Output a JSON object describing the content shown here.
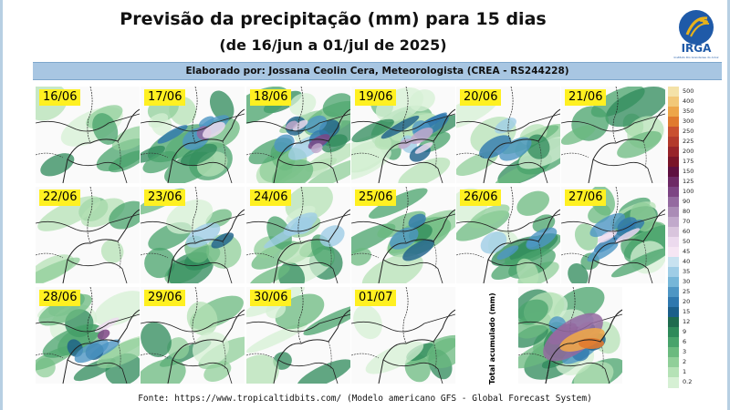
{
  "header": {
    "title": "Previsão da precipitação (mm) para 15 dias",
    "subtitle": "(de 16/jun a 01/jul de 2025)",
    "author": "Elaborado por: Jossana Ceolin Cera, Meteorologista (CREA - RS244228)"
  },
  "logo": {
    "text": "IRGA",
    "caption": "Instituto Rio Grandense do Arroz",
    "colors": {
      "blue": "#1f5aa8",
      "gold": "#e8b21b"
    }
  },
  "panels": [
    {
      "date": "16/06",
      "intensity": 0.15
    },
    {
      "date": "17/06",
      "intensity": 0.55
    },
    {
      "date": "18/06",
      "intensity": 0.75
    },
    {
      "date": "19/06",
      "intensity": 0.7
    },
    {
      "date": "20/06",
      "intensity": 0.35
    },
    {
      "date": "21/06",
      "intensity": 0.1
    },
    {
      "date": "22/06",
      "intensity": 0.05
    },
    {
      "date": "23/06",
      "intensity": 0.3
    },
    {
      "date": "24/06",
      "intensity": 0.5
    },
    {
      "date": "25/06",
      "intensity": 0.35
    },
    {
      "date": "26/06",
      "intensity": 0.5
    },
    {
      "date": "27/06",
      "intensity": 0.6
    },
    {
      "date": "28/06",
      "intensity": 0.55
    },
    {
      "date": "29/06",
      "intensity": 0.2
    },
    {
      "date": "30/06",
      "intensity": 0.15
    },
    {
      "date": "01/07",
      "intensity": 0.1
    }
  ],
  "accumulated": {
    "label": "Total acumulado (mm)",
    "intensity": 1.0
  },
  "colorbar": {
    "labels": [
      "500",
      "400",
      "350",
      "300",
      "250",
      "225",
      "200",
      "175",
      "150",
      "125",
      "100",
      "90",
      "80",
      "70",
      "60",
      "50",
      "45",
      "40",
      "35",
      "30",
      "25",
      "20",
      "15",
      "12",
      "9",
      "6",
      "3",
      "2",
      "1",
      "0.2"
    ],
    "colors": [
      "#f4e2a8",
      "#f2c878",
      "#eda64a",
      "#e07a2f",
      "#c95030",
      "#b33a2c",
      "#98242a",
      "#7a1529",
      "#5f1040",
      "#6e2a66",
      "#7d4584",
      "#946aa0",
      "#aa8cb6",
      "#c1a9cb",
      "#d9c5dd",
      "#ecdaee",
      "#f6e6f4",
      "#c8e2f0",
      "#9fcde6",
      "#76b6d8",
      "#4e96c4",
      "#2f78ae",
      "#1b5f8a",
      "#1e6b4e",
      "#2e8a5a",
      "#48a36b",
      "#6bba7f",
      "#90cf99",
      "#b5e2b6",
      "#d6f0d4"
    ]
  },
  "footer": {
    "text": "Fonte: https://www.tropicaltidbits.com/ (Modelo americano GFS - Global Forecast System)"
  }
}
